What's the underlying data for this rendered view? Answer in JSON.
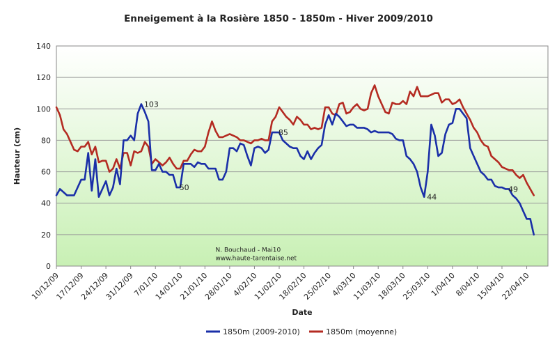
{
  "chart_data": {
    "type": "line",
    "title": "Enneigement à la Rosière 1850 - 1850m - Hiver 2009/2010",
    "xlabel": "Date",
    "ylabel": "Hauteur (cm)",
    "ylim": [
      0,
      140
    ],
    "yticks": [
      0,
      20,
      40,
      60,
      80,
      100,
      120,
      140
    ],
    "grid": "horizontal",
    "legend_position": "bottom",
    "colors": {
      "current": "#1a2fa8",
      "average": "#b42b22",
      "plot_bg_top": "#ffffff",
      "plot_bg_bottom": "#c8f0b4"
    },
    "x_dates": [
      "10/12/09",
      "17/12/09",
      "24/12/09",
      "31/12/09",
      "7/01/10",
      "14/01/10",
      "21/01/10",
      "28/01/10",
      "4/02/10",
      "11/02/10",
      "18/02/10",
      "25/02/10",
      "4/03/10",
      "11/03/10",
      "18/03/10",
      "25/03/10",
      "1/04/10",
      "8/04/10",
      "15/04/10",
      "22/04/10"
    ],
    "x_first_day": 0,
    "x_last_day": 139,
    "series": [
      {
        "name": "1850m (2009-2010)",
        "color": "#1a2fa8",
        "points": [
          [
            0,
            45
          ],
          [
            1,
            49
          ],
          [
            2,
            47
          ],
          [
            3,
            45
          ],
          [
            4,
            45
          ],
          [
            5,
            45
          ],
          [
            6,
            50
          ],
          [
            7,
            55
          ],
          [
            8,
            55
          ],
          [
            9,
            72
          ],
          [
            10,
            48
          ],
          [
            11,
            68
          ],
          [
            12,
            44
          ],
          [
            13,
            49
          ],
          [
            14,
            54
          ],
          [
            15,
            45
          ],
          [
            16,
            50
          ],
          [
            17,
            62
          ],
          [
            18,
            52
          ],
          [
            19,
            80
          ],
          [
            20,
            80
          ],
          [
            21,
            83
          ],
          [
            22,
            80
          ],
          [
            23,
            97
          ],
          [
            24,
            103
          ],
          [
            25,
            98
          ],
          [
            26,
            92
          ],
          [
            27,
            61
          ],
          [
            28,
            61
          ],
          [
            29,
            65
          ],
          [
            30,
            60
          ],
          [
            31,
            60
          ],
          [
            32,
            58
          ],
          [
            33,
            58
          ],
          [
            34,
            50
          ],
          [
            35,
            50
          ],
          [
            36,
            65
          ],
          [
            37,
            65
          ],
          [
            38,
            65
          ],
          [
            39,
            63
          ],
          [
            40,
            66
          ],
          [
            41,
            65
          ],
          [
            42,
            65
          ],
          [
            43,
            62
          ],
          [
            44,
            62
          ],
          [
            45,
            62
          ],
          [
            46,
            55
          ],
          [
            47,
            55
          ],
          [
            48,
            60
          ],
          [
            49,
            75
          ],
          [
            50,
            75
          ],
          [
            51,
            73
          ],
          [
            52,
            78
          ],
          [
            53,
            77
          ],
          [
            54,
            70
          ],
          [
            55,
            64
          ],
          [
            56,
            75
          ],
          [
            57,
            76
          ],
          [
            58,
            75
          ],
          [
            59,
            72
          ],
          [
            60,
            74
          ],
          [
            61,
            85
          ],
          [
            62,
            85
          ],
          [
            63,
            85
          ],
          [
            64,
            80
          ],
          [
            65,
            78
          ],
          [
            66,
            76
          ],
          [
            67,
            75
          ],
          [
            68,
            75
          ],
          [
            69,
            70
          ],
          [
            70,
            68
          ],
          [
            71,
            73
          ],
          [
            72,
            68
          ],
          [
            73,
            72
          ],
          [
            74,
            75
          ],
          [
            75,
            77
          ],
          [
            76,
            90
          ],
          [
            77,
            96
          ],
          [
            78,
            90
          ],
          [
            79,
            97
          ],
          [
            80,
            95
          ],
          [
            81,
            92
          ],
          [
            82,
            89
          ],
          [
            83,
            90
          ],
          [
            84,
            90
          ],
          [
            85,
            88
          ],
          [
            86,
            88
          ],
          [
            87,
            88
          ],
          [
            88,
            87
          ],
          [
            89,
            85
          ],
          [
            90,
            86
          ],
          [
            91,
            85
          ],
          [
            92,
            85
          ],
          [
            93,
            85
          ],
          [
            94,
            85
          ],
          [
            95,
            84
          ],
          [
            96,
            81
          ],
          [
            97,
            80
          ],
          [
            98,
            80
          ],
          [
            99,
            70
          ],
          [
            100,
            68
          ],
          [
            101,
            65
          ],
          [
            102,
            60
          ],
          [
            103,
            50
          ],
          [
            104,
            44
          ],
          [
            105,
            60
          ],
          [
            106,
            90
          ],
          [
            107,
            83
          ],
          [
            108,
            70
          ],
          [
            109,
            72
          ],
          [
            110,
            84
          ],
          [
            111,
            90
          ],
          [
            112,
            91
          ],
          [
            113,
            100
          ],
          [
            114,
            100
          ],
          [
            115,
            97
          ],
          [
            116,
            94
          ],
          [
            117,
            75
          ],
          [
            118,
            70
          ],
          [
            119,
            65
          ],
          [
            120,
            60
          ],
          [
            121,
            58
          ],
          [
            122,
            55
          ],
          [
            123,
            55
          ],
          [
            124,
            51
          ],
          [
            125,
            50
          ],
          [
            126,
            50
          ],
          [
            127,
            49
          ],
          [
            128,
            49
          ],
          [
            129,
            45
          ],
          [
            130,
            43
          ],
          [
            131,
            40
          ],
          [
            132,
            35
          ],
          [
            133,
            30
          ],
          [
            134,
            30
          ],
          [
            135,
            20
          ]
        ]
      },
      {
        "name": "1850m (moyenne)",
        "color": "#b42b22",
        "points": [
          [
            0,
            101
          ],
          [
            1,
            96
          ],
          [
            2,
            87
          ],
          [
            3,
            84
          ],
          [
            4,
            79
          ],
          [
            5,
            74
          ],
          [
            6,
            73
          ],
          [
            7,
            76
          ],
          [
            8,
            76
          ],
          [
            9,
            79
          ],
          [
            10,
            71
          ],
          [
            11,
            76
          ],
          [
            12,
            66
          ],
          [
            13,
            67
          ],
          [
            14,
            67
          ],
          [
            15,
            60
          ],
          [
            16,
            62
          ],
          [
            17,
            68
          ],
          [
            18,
            62
          ],
          [
            19,
            72
          ],
          [
            20,
            72
          ],
          [
            21,
            64
          ],
          [
            22,
            73
          ],
          [
            23,
            72
          ],
          [
            24,
            73
          ],
          [
            25,
            79
          ],
          [
            26,
            76
          ],
          [
            27,
            65
          ],
          [
            28,
            68
          ],
          [
            29,
            66
          ],
          [
            30,
            64
          ],
          [
            31,
            66
          ],
          [
            32,
            69
          ],
          [
            33,
            65
          ],
          [
            34,
            62
          ],
          [
            35,
            62
          ],
          [
            36,
            67
          ],
          [
            37,
            67
          ],
          [
            38,
            71
          ],
          [
            39,
            74
          ],
          [
            40,
            73
          ],
          [
            41,
            73
          ],
          [
            42,
            76
          ],
          [
            43,
            85
          ],
          [
            44,
            92
          ],
          [
            45,
            86
          ],
          [
            46,
            82
          ],
          [
            47,
            82
          ],
          [
            48,
            83
          ],
          [
            49,
            84
          ],
          [
            50,
            83
          ],
          [
            51,
            82
          ],
          [
            52,
            80
          ],
          [
            53,
            80
          ],
          [
            54,
            79
          ],
          [
            55,
            78
          ],
          [
            56,
            80
          ],
          [
            57,
            80
          ],
          [
            58,
            81
          ],
          [
            59,
            80
          ],
          [
            60,
            80
          ],
          [
            61,
            92
          ],
          [
            62,
            95
          ],
          [
            63,
            101
          ],
          [
            64,
            98
          ],
          [
            65,
            95
          ],
          [
            66,
            93
          ],
          [
            67,
            90
          ],
          [
            68,
            95
          ],
          [
            69,
            93
          ],
          [
            70,
            90
          ],
          [
            71,
            90
          ],
          [
            72,
            87
          ],
          [
            73,
            88
          ],
          [
            74,
            87
          ],
          [
            75,
            88
          ],
          [
            76,
            101
          ],
          [
            77,
            101
          ],
          [
            78,
            97
          ],
          [
            79,
            96
          ],
          [
            80,
            103
          ],
          [
            81,
            104
          ],
          [
            82,
            97
          ],
          [
            83,
            98
          ],
          [
            84,
            101
          ],
          [
            85,
            103
          ],
          [
            86,
            100
          ],
          [
            87,
            99
          ],
          [
            88,
            100
          ],
          [
            89,
            110
          ],
          [
            90,
            115
          ],
          [
            91,
            108
          ],
          [
            92,
            103
          ],
          [
            93,
            98
          ],
          [
            94,
            97
          ],
          [
            95,
            104
          ],
          [
            96,
            103
          ],
          [
            97,
            103
          ],
          [
            98,
            105
          ],
          [
            99,
            103
          ],
          [
            100,
            111
          ],
          [
            101,
            108
          ],
          [
            102,
            114
          ],
          [
            103,
            108
          ],
          [
            104,
            108
          ],
          [
            105,
            108
          ],
          [
            106,
            109
          ],
          [
            107,
            110
          ],
          [
            108,
            110
          ],
          [
            109,
            104
          ],
          [
            110,
            106
          ],
          [
            111,
            106
          ],
          [
            112,
            103
          ],
          [
            113,
            104
          ],
          [
            114,
            106
          ],
          [
            115,
            101
          ],
          [
            116,
            97
          ],
          [
            117,
            93
          ],
          [
            118,
            88
          ],
          [
            119,
            85
          ],
          [
            120,
            80
          ],
          [
            121,
            77
          ],
          [
            122,
            76
          ],
          [
            123,
            70
          ],
          [
            124,
            68
          ],
          [
            125,
            66
          ],
          [
            126,
            63
          ],
          [
            127,
            62
          ],
          [
            128,
            61
          ],
          [
            129,
            61
          ],
          [
            130,
            58
          ],
          [
            131,
            56
          ],
          [
            132,
            58
          ],
          [
            133,
            53
          ],
          [
            134,
            49
          ],
          [
            135,
            45
          ]
        ]
      }
    ],
    "annotations": [
      {
        "text": "103",
        "x": 24,
        "y": 103
      },
      {
        "text": "50",
        "x": 34,
        "y": 50
      },
      {
        "text": "85",
        "x": 62,
        "y": 85
      },
      {
        "text": "44",
        "x": 104,
        "y": 44
      },
      {
        "text": "49",
        "x": 127,
        "y": 49
      }
    ],
    "credit": [
      "N. Bouchaud - Mai10",
      "www.haute-tarentaise.net"
    ],
    "credit_anchor": {
      "x": 45,
      "y": 9
    }
  }
}
